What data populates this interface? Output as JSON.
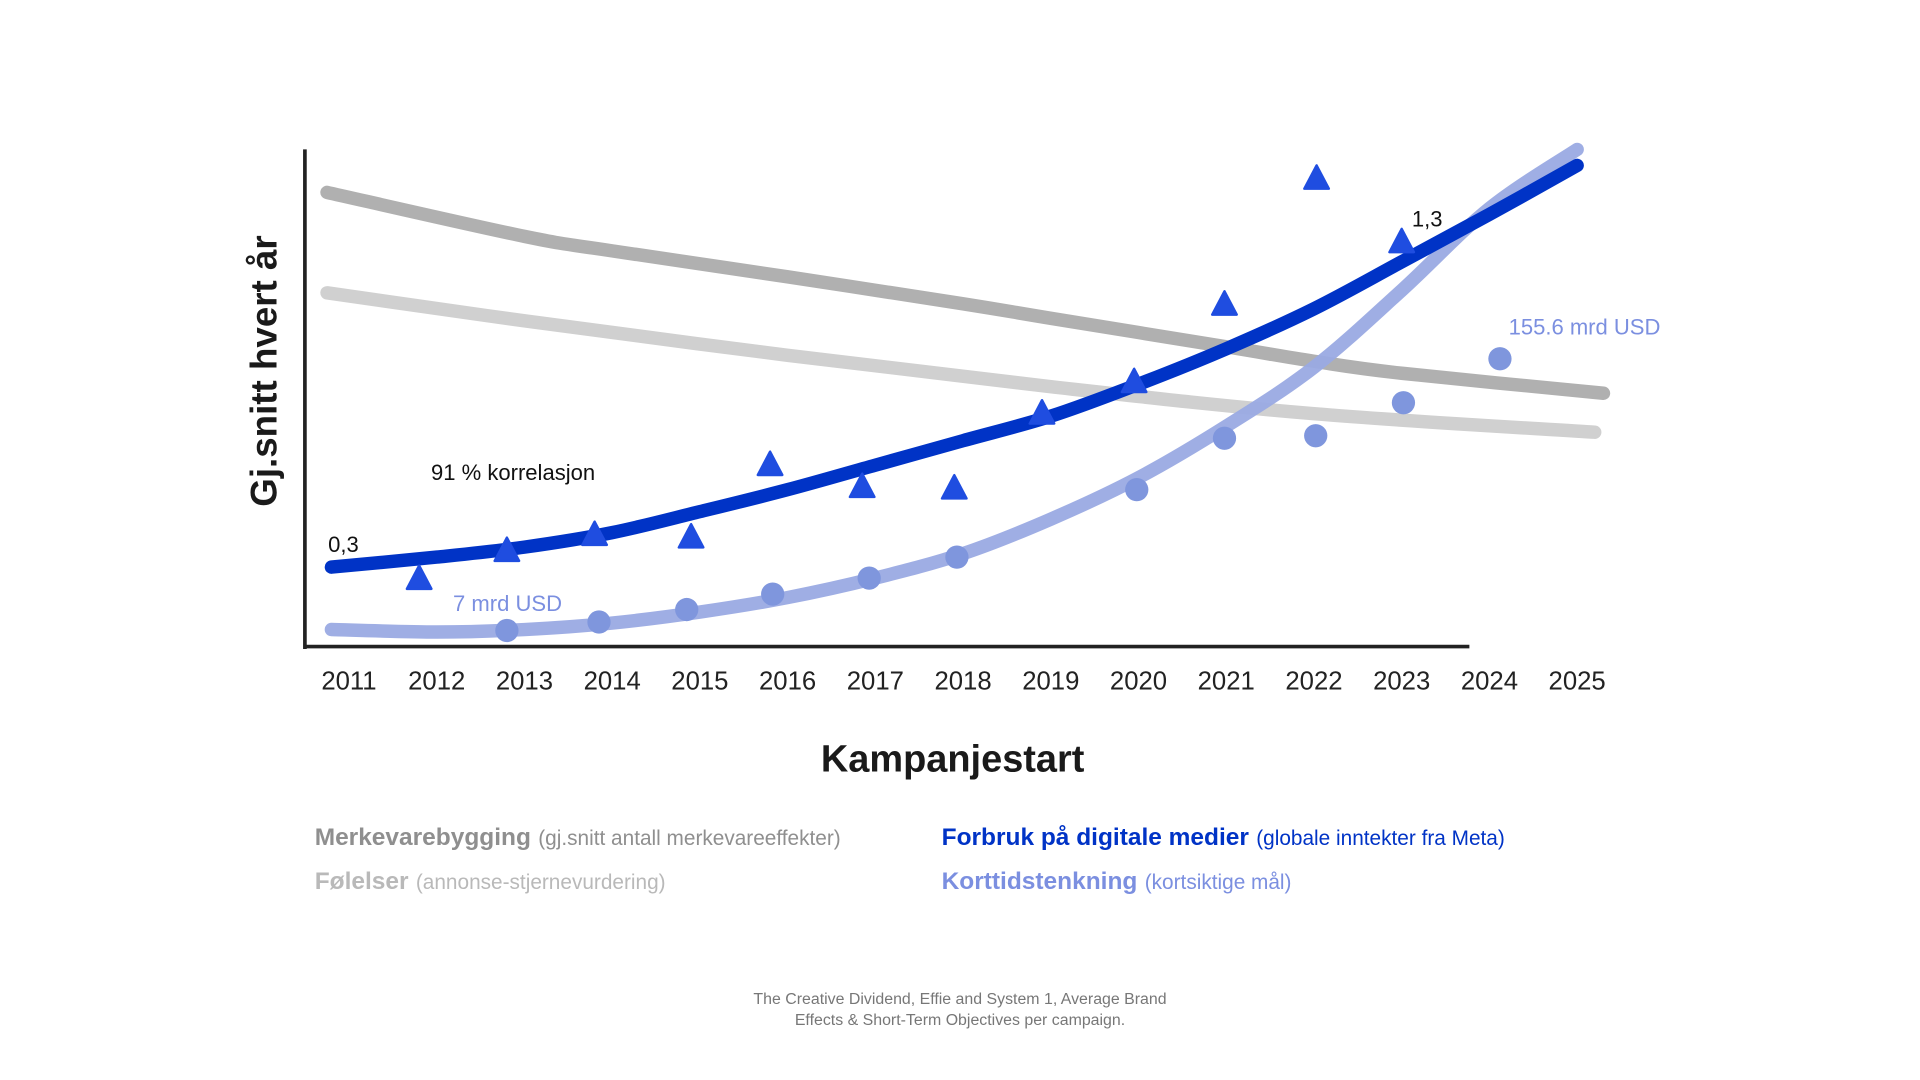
{
  "chart_data": {
    "type": "line",
    "title": "",
    "xlabel": "Kampanjestart",
    "ylabel": "Gj.snitt hvert år",
    "x_ticks": [
      "2011",
      "2012",
      "2013",
      "2014",
      "2015",
      "2016",
      "2017",
      "2018",
      "2019",
      "2020",
      "2021",
      "2022",
      "2023",
      "2024",
      "2025"
    ],
    "xlim": [
      2011,
      2025
    ],
    "ylim": [
      0,
      100
    ],
    "y_units": "relative index (no y ticks shown)",
    "series": [
      {
        "name": "Merkevarebygging",
        "kind": "trend",
        "color": "#b0b0b0",
        "points": [
          [
            2010.75,
            90.9
          ],
          [
            2013,
            82.1
          ],
          [
            2014,
            79.2
          ],
          [
            2016,
            74.0
          ],
          [
            2018,
            68.6
          ],
          [
            2019,
            65.7
          ],
          [
            2021,
            60.0
          ],
          [
            2022,
            57.1
          ],
          [
            2023,
            54.7
          ],
          [
            2025.3,
            50.7
          ]
        ]
      },
      {
        "name": "Følelser",
        "kind": "trend",
        "color": "#d0d0d0",
        "points": [
          [
            2010.75,
            70.8
          ],
          [
            2013,
            65.2
          ],
          [
            2016,
            58.3
          ],
          [
            2019,
            52.0
          ],
          [
            2022,
            46.6
          ],
          [
            2025.2,
            42.9
          ]
        ]
      },
      {
        "name": "Forbruk på digitale medier",
        "kind": "trend",
        "color": "#0033c6",
        "points": [
          [
            2010.8,
            15.9
          ],
          [
            2012,
            17.9
          ],
          [
            2013,
            19.9
          ],
          [
            2014,
            22.8
          ],
          [
            2015,
            27.0
          ],
          [
            2016,
            31.4
          ],
          [
            2017,
            36.3
          ],
          [
            2018,
            41.2
          ],
          [
            2019,
            46.1
          ],
          [
            2020,
            52.5
          ],
          [
            2021,
            59.6
          ],
          [
            2022,
            67.6
          ],
          [
            2023,
            77.0
          ],
          [
            2024,
            86.5
          ],
          [
            2025,
            96.3
          ]
        ]
      },
      {
        "name": "Korttidstenkning",
        "kind": "trend",
        "color": "#9aaae3",
        "points": [
          [
            2010.8,
            3.4
          ],
          [
            2012,
            2.9
          ],
          [
            2013,
            3.4
          ],
          [
            2014,
            4.7
          ],
          [
            2015,
            6.9
          ],
          [
            2016,
            9.8
          ],
          [
            2017,
            13.7
          ],
          [
            2018,
            18.6
          ],
          [
            2019,
            25.5
          ],
          [
            2020,
            33.8
          ],
          [
            2021,
            44.1
          ],
          [
            2022,
            55.9
          ],
          [
            2023,
            71.3
          ],
          [
            2024,
            87.7
          ],
          [
            2025,
            99.5
          ]
        ]
      },
      {
        "name": "Forbruk på digitale medier (data)",
        "kind": "triangle",
        "color": "#1f4de0",
        "points": [
          [
            2011.8,
            13.5
          ],
          [
            2012.8,
            19.1
          ],
          [
            2013.8,
            22.3
          ],
          [
            2014.9,
            21.8
          ],
          [
            2015.8,
            36.3
          ],
          [
            2016.85,
            31.9
          ],
          [
            2017.9,
            31.6
          ],
          [
            2018.9,
            46.6
          ],
          [
            2019.95,
            52.9
          ],
          [
            2020.98,
            68.4
          ],
          [
            2022.03,
            93.6
          ],
          [
            2023,
            80.9
          ]
        ]
      },
      {
        "name": "Korttidstenkning (data)",
        "kind": "circle",
        "color": "#7f96dd",
        "points": [
          [
            2012.8,
            3.2
          ],
          [
            2013.85,
            4.9
          ],
          [
            2014.85,
            7.4
          ],
          [
            2015.83,
            10.5
          ],
          [
            2016.93,
            13.7
          ],
          [
            2017.93,
            17.9
          ],
          [
            2019.98,
            31.4
          ],
          [
            2020.98,
            41.7
          ],
          [
            2022.02,
            42.2
          ],
          [
            2023.02,
            48.8
          ],
          [
            2024.12,
            57.6
          ]
        ]
      }
    ],
    "annotations": [
      {
        "id": "start_val",
        "text": "0,3"
      },
      {
        "id": "end_val",
        "text": "1,3"
      },
      {
        "id": "corr",
        "text": "91 % korrelasjon"
      },
      {
        "id": "start_usd",
        "text": "7 mrd USD"
      },
      {
        "id": "end_usd",
        "text": "155.6 mrd USD"
      }
    ],
    "legend": [
      {
        "bold": "Merkevarebygging",
        "note": "(gj.snitt antall merkevareeffekter)",
        "color": "#8f8f8f"
      },
      {
        "bold": "Følelser",
        "note": "(annonse-stjernevurdering)",
        "color": "#b9b9b9"
      },
      {
        "bold": "Forbruk på digitale medier",
        "note": "(globale inntekter fra Meta)",
        "color": "#0033c6"
      },
      {
        "bold": "Korttidstenkning",
        "note": "(kortsiktige mål)",
        "color": "#7b8fe0"
      }
    ],
    "source": [
      "The Creative Dividend, Effie and System 1, Average Brand",
      "Effects & Short-Term Objectives per campaign."
    ]
  }
}
